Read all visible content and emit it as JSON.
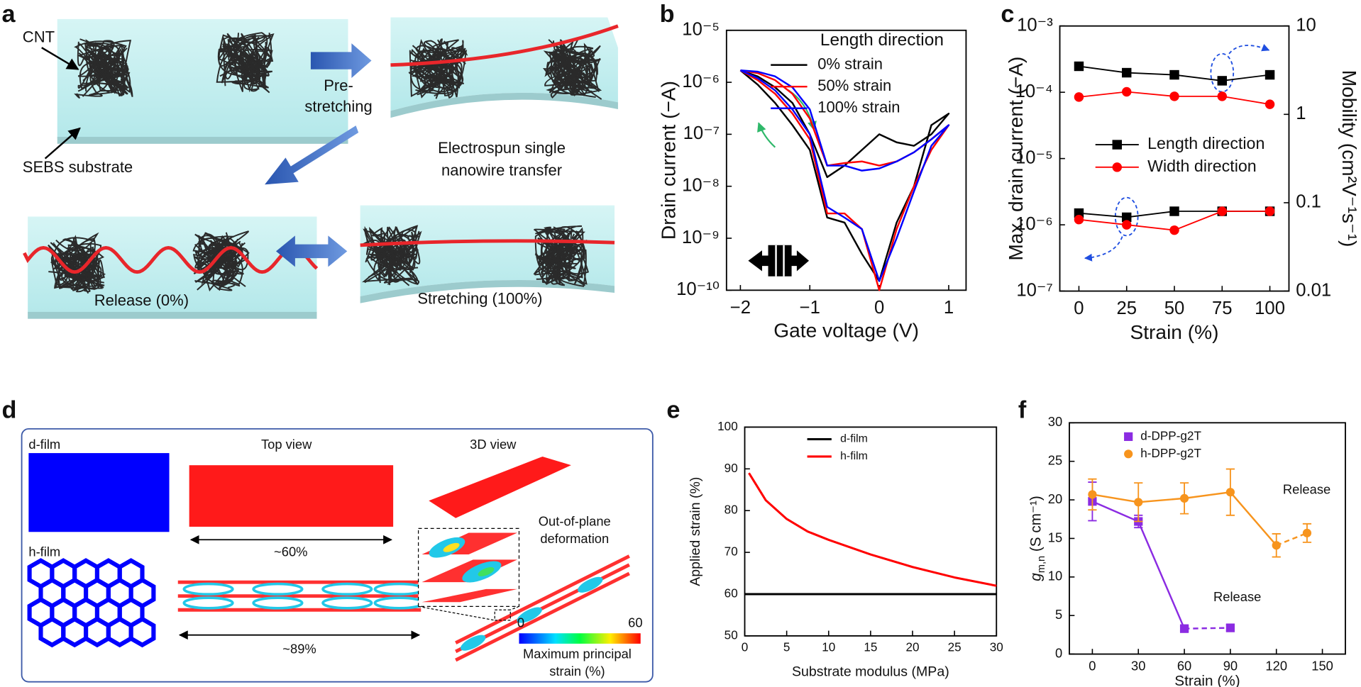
{
  "panels": {
    "letters": [
      "a",
      "b",
      "c",
      "d",
      "e",
      "f"
    ],
    "a": {
      "cnt": "CNT",
      "substrate": "SEBS substrate",
      "prestretch": [
        "Pre-",
        "stretching"
      ],
      "transfer": [
        "Electrospun single",
        "nanowire transfer"
      ],
      "release": "Release (0%)",
      "stretching": "Stretching (100%)"
    },
    "d": {
      "dfilm": "d-film",
      "hfilm": "h-film",
      "top_view": "Top view",
      "view3d": "3D view",
      "d_strain": "~60%",
      "h_strain": "~89%",
      "deformation": [
        "Out-of-plane",
        "deformation"
      ],
      "colorbar_min": "0",
      "colorbar_max": "60",
      "colorbar_label": [
        "Maximum principal",
        "strain (%)"
      ]
    }
  },
  "chart_data": [
    {
      "type": "line",
      "xlabel": "Gate voltage (V)",
      "ylabel": "Drain current (−A)",
      "legend_title": "Length direction",
      "ylog": true,
      "xlim": [
        -2.2,
        1.25
      ],
      "ylim": [
        1e-10,
        1e-05
      ],
      "xticks": [
        {
          "value": -2,
          "label": "−2"
        },
        {
          "value": -1,
          "label": "−1"
        },
        0,
        1
      ],
      "yticks": [
        {
          "value": 1e-10,
          "label": "10⁻¹⁰"
        },
        {
          "value": 1e-09,
          "label": "10⁻⁹"
        },
        {
          "value": 1e-08,
          "label": "10⁻⁸"
        },
        {
          "value": 1e-07,
          "label": "10⁻⁷"
        },
        {
          "value": 1e-06,
          "label": "10⁻⁶"
        },
        {
          "value": 1e-05,
          "label": "10⁻⁵"
        }
      ],
      "x": [
        -2,
        -1.75,
        -1.5,
        -1.25,
        -1,
        -0.75,
        -0.5,
        -0.25,
        0,
        0.25,
        0.5,
        0.75,
        1,
        0.75,
        0.5,
        0.25,
        0,
        -0.25,
        -0.5,
        -0.75,
        -1,
        -1.25,
        -1.5,
        -1.75,
        -2
      ],
      "series": [
        {
          "name": "0% strain",
          "color": "#000000",
          "values": [
            1.7e-06,
            1.3e-06,
            8e-07,
            4e-07,
            1e-07,
            1.5e-08,
            2.5e-08,
            5e-08,
            1e-07,
            7e-08,
            6e-08,
            1e-07,
            2.5e-07,
            1.5e-07,
            1e-08,
            2e-09,
            1.5e-10,
            5e-10,
            2e-09,
            2.5e-09,
            5e-08,
            1.5e-07,
            4e-07,
            9e-07,
            1.7e-06
          ]
        },
        {
          "name": "50% strain",
          "color": "#ff0000",
          "values": [
            1.7e-06,
            1.5e-06,
            1.1e-06,
            6e-07,
            2e-07,
            2.5e-08,
            2.8e-08,
            3e-08,
            2.5e-08,
            3e-08,
            4.5e-08,
            8e-08,
            1.5e-07,
            5e-08,
            1e-08,
            1.5e-09,
            1e-10,
            1.5e-09,
            3e-09,
            3e-09,
            8e-08,
            2.5e-07,
            6e-07,
            1.1e-06,
            1.7e-06
          ]
        },
        {
          "name": "100% strain",
          "color": "#0000ff",
          "values": [
            1.7e-06,
            1.6e-06,
            1.3e-06,
            8e-07,
            3e-07,
            2.5e-08,
            2.5e-08,
            2e-08,
            2.2e-08,
            3e-08,
            4.5e-08,
            8e-08,
            1.5e-07,
            6e-08,
            8e-09,
            1e-09,
            1.5e-10,
            1.5e-09,
            2.5e-09,
            4e-09,
            1e-07,
            3e-07,
            7e-07,
            1.2e-06,
            1.7e-06
          ]
        }
      ]
    },
    {
      "type": "line",
      "xlabel": "Strain (%)",
      "ylabel": "Max. drain current (−A)",
      "y2label": "Mobility (cm²V⁻¹s⁻¹)",
      "ylog": true,
      "y2log": true,
      "xlim": [
        -10,
        110
      ],
      "ylim": [
        1e-07,
        0.001
      ],
      "y2lim": [
        0.01,
        10
      ],
      "xticks": [
        0,
        25,
        50,
        75,
        100
      ],
      "yticks": [
        {
          "value": 1e-07,
          "label": "10⁻⁷"
        },
        {
          "value": 1e-06,
          "label": "10⁻⁶"
        },
        {
          "value": 1e-05,
          "label": "10⁻⁵"
        },
        {
          "value": 0.0001,
          "label": "10⁻⁴"
        },
        {
          "value": 0.001,
          "label": "10⁻³"
        }
      ],
      "y2ticks": [
        0.01,
        0.1,
        1,
        10
      ],
      "x": [
        0,
        25,
        50,
        75,
        100
      ],
      "series": [
        {
          "name": "Length direction",
          "color": "#000000",
          "marker": "square",
          "values": [
            1.5e-06,
            1.3e-06,
            1.6e-06,
            1.6e-06,
            1.6e-06
          ]
        },
        {
          "name": "Width direction",
          "color": "#ff0000",
          "marker": "circle",
          "values": [
            1.2e-06,
            1e-06,
            8.3e-07,
            1.6e-06,
            1.6e-06
          ]
        },
        {
          "color": "#000000",
          "marker": "square",
          "axis": "y2",
          "values": [
            3.5,
            2.96,
            2.8,
            2.4,
            2.8
          ]
        },
        {
          "color": "#ff0000",
          "marker": "circle",
          "axis": "y2",
          "values": [
            1.57,
            1.8,
            1.6,
            1.6,
            1.3
          ]
        }
      ]
    },
    {
      "type": "line",
      "xlabel": "Substrate modulus (MPa)",
      "ylabel": "Applied strain (%)",
      "xlim": [
        0,
        30
      ],
      "ylim": [
        50,
        100
      ],
      "xticks": [
        0,
        5,
        10,
        15,
        20,
        25,
        30
      ],
      "yticks": [
        50,
        60,
        70,
        80,
        90,
        100
      ],
      "series": [
        {
          "name": "d-film",
          "color": "#000000",
          "x": [
            0,
            30
          ],
          "values": [
            60,
            60
          ]
        },
        {
          "name": "h-film",
          "color": "#ff0000",
          "x": [
            0.5,
            2.5,
            5,
            7.5,
            10,
            15,
            20,
            25,
            30
          ],
          "values": [
            89,
            82.5,
            78,
            75,
            73,
            69.5,
            66.5,
            64,
            62
          ]
        }
      ]
    },
    {
      "type": "errorbar",
      "xlabel": "Strain (%)",
      "ylabel": {
        "symbol": "g",
        "subscript": "m,n",
        "unit": " (S cm⁻¹)"
      },
      "xlim": [
        -15,
        165
      ],
      "ylim": [
        0,
        30
      ],
      "xticks": [
        0,
        30,
        60,
        90,
        120,
        150
      ],
      "yticks": [
        0,
        5,
        10,
        15,
        20,
        25,
        30
      ],
      "annotations": [
        "Release",
        "Release"
      ],
      "series": [
        {
          "name": "d-DPP-g2T",
          "color": "#8b2be2",
          "marker": "square",
          "dashed_after": 2,
          "x": [
            0,
            30,
            60,
            90
          ],
          "values": [
            19.8,
            17.2,
            3.3,
            3.4
          ],
          "errors": [
            2.5,
            0.8,
            0.3,
            0.4
          ]
        },
        {
          "name": "h-DPP-g2T",
          "color": "#f7941d",
          "marker": "circle",
          "dashed_after": 4,
          "x": [
            0,
            30,
            60,
            90,
            120,
            140
          ],
          "values": [
            20.7,
            19.7,
            20.2,
            21,
            14.1,
            15.7
          ],
          "errors": [
            2,
            2.5,
            2,
            3,
            1.5,
            1.2
          ]
        }
      ]
    }
  ]
}
